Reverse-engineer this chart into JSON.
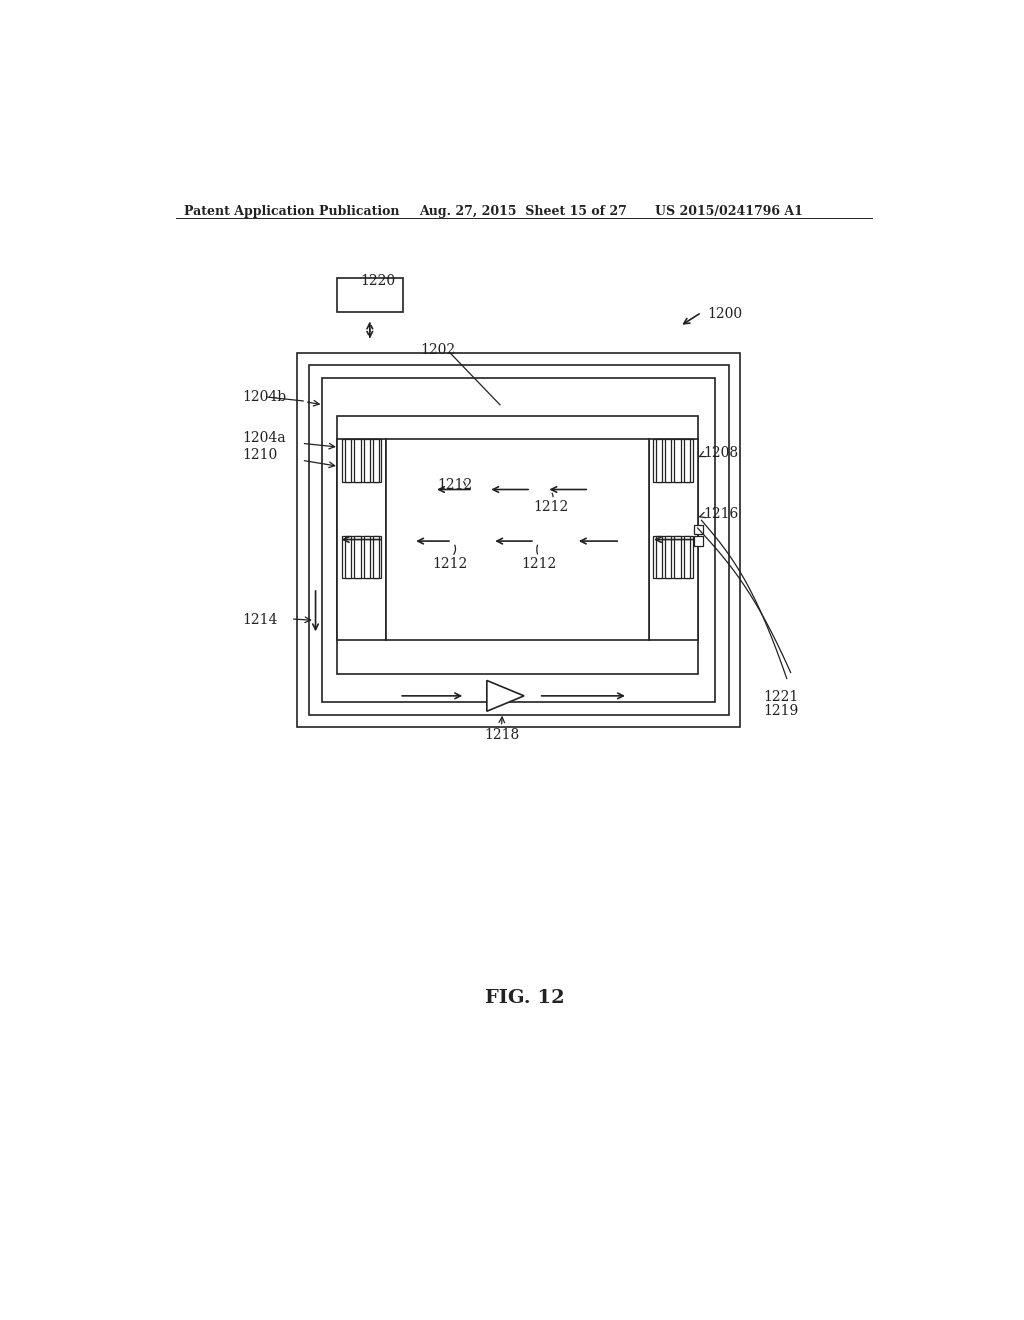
{
  "bg_color": "#ffffff",
  "header_left": "Patent Application Publication",
  "header_mid": "Aug. 27, 2015  Sheet 15 of 27",
  "header_right": "US 2015/0241796 A1",
  "fig_label": "FIG. 12",
  "ref_1200": "1200",
  "ref_1202": "1202",
  "ref_1204a": "1204a",
  "ref_1204b": "1204b",
  "ref_1208": "1208",
  "ref_1210": "1210",
  "ref_1212": "1212",
  "ref_1214": "1214",
  "ref_1216": "1216",
  "ref_1218": "1218",
  "ref_1219": "1219",
  "ref_1220": "1220",
  "ref_1221": "1221"
}
